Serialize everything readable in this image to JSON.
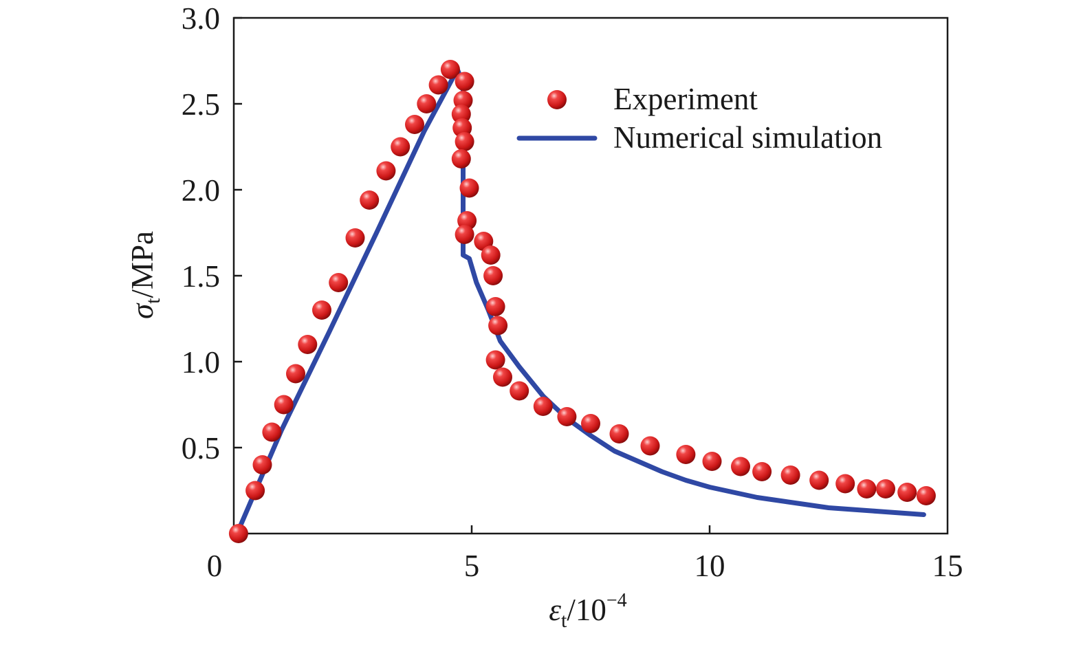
{
  "chart_data": {
    "type": "scatter",
    "title": "",
    "xlabel": {
      "symbol": "ε",
      "subscript": "t",
      "unit_prefix": "/10",
      "exponent": "−4"
    },
    "ylabel": {
      "symbol": "σ",
      "subscript": "t",
      "unit": "/MPa"
    },
    "xlim": [
      0,
      15
    ],
    "ylim": [
      0,
      3.0
    ],
    "xticks": [
      {
        "value": 0,
        "label": "0"
      },
      {
        "value": 5,
        "label": "5"
      },
      {
        "value": 10,
        "label": "10"
      },
      {
        "value": 15,
        "label": "15"
      }
    ],
    "yticks": [
      {
        "value": 0.5,
        "label": "0.5"
      },
      {
        "value": 1.0,
        "label": "1.0"
      },
      {
        "value": 1.5,
        "label": "1.5"
      },
      {
        "value": 2.0,
        "label": "2.0"
      },
      {
        "value": 2.5,
        "label": "2.5"
      },
      {
        "value": 3.0,
        "label": "3.0"
      }
    ],
    "grid": false,
    "legend_position": "top-right",
    "series": [
      {
        "name": "Experiment",
        "kind": "scatter",
        "color": "#d42020",
        "points": [
          [
            0.1,
            0.0
          ],
          [
            0.45,
            0.25
          ],
          [
            0.6,
            0.4
          ],
          [
            0.8,
            0.59
          ],
          [
            1.05,
            0.75
          ],
          [
            1.3,
            0.93
          ],
          [
            1.55,
            1.1
          ],
          [
            1.85,
            1.3
          ],
          [
            2.2,
            1.46
          ],
          [
            2.55,
            1.72
          ],
          [
            2.85,
            1.94
          ],
          [
            3.2,
            2.11
          ],
          [
            3.5,
            2.25
          ],
          [
            3.8,
            2.38
          ],
          [
            4.05,
            2.5
          ],
          [
            4.3,
            2.61
          ],
          [
            4.55,
            2.7
          ],
          [
            4.85,
            2.63
          ],
          [
            4.82,
            2.52
          ],
          [
            4.78,
            2.44
          ],
          [
            4.8,
            2.36
          ],
          [
            4.85,
            2.28
          ],
          [
            4.78,
            2.18
          ],
          [
            4.95,
            2.01
          ],
          [
            4.9,
            1.82
          ],
          [
            4.85,
            1.74
          ],
          [
            5.25,
            1.7
          ],
          [
            5.4,
            1.62
          ],
          [
            5.45,
            1.5
          ],
          [
            5.5,
            1.32
          ],
          [
            5.55,
            1.21
          ],
          [
            5.5,
            1.01
          ],
          [
            5.65,
            0.91
          ],
          [
            6.0,
            0.83
          ],
          [
            6.5,
            0.74
          ],
          [
            7.0,
            0.68
          ],
          [
            7.5,
            0.64
          ],
          [
            8.1,
            0.58
          ],
          [
            8.75,
            0.51
          ],
          [
            9.5,
            0.46
          ],
          [
            10.05,
            0.42
          ],
          [
            10.65,
            0.39
          ],
          [
            11.1,
            0.36
          ],
          [
            11.7,
            0.34
          ],
          [
            12.3,
            0.31
          ],
          [
            12.85,
            0.29
          ],
          [
            13.3,
            0.26
          ],
          [
            13.7,
            0.26
          ],
          [
            14.15,
            0.24
          ],
          [
            14.55,
            0.22
          ]
        ]
      },
      {
        "name": "Numerical simulation",
        "kind": "line",
        "color": "#2f48a4",
        "points": [
          [
            0.1,
            0.02
          ],
          [
            1.0,
            0.6
          ],
          [
            2.0,
            1.17
          ],
          [
            3.0,
            1.75
          ],
          [
            4.0,
            2.34
          ],
          [
            4.7,
            2.7
          ],
          [
            4.82,
            2.62
          ],
          [
            4.82,
            1.62
          ],
          [
            4.95,
            1.6
          ],
          [
            5.1,
            1.46
          ],
          [
            5.35,
            1.3
          ],
          [
            5.6,
            1.12
          ],
          [
            6.0,
            0.97
          ],
          [
            6.5,
            0.8
          ],
          [
            7.0,
            0.67
          ],
          [
            7.5,
            0.57
          ],
          [
            8.0,
            0.48
          ],
          [
            8.5,
            0.42
          ],
          [
            9.0,
            0.36
          ],
          [
            9.5,
            0.31
          ],
          [
            10.0,
            0.27
          ],
          [
            10.5,
            0.24
          ],
          [
            11.0,
            0.21
          ],
          [
            11.5,
            0.19
          ],
          [
            12.0,
            0.17
          ],
          [
            12.5,
            0.15
          ],
          [
            13.0,
            0.14
          ],
          [
            13.5,
            0.13
          ],
          [
            14.0,
            0.12
          ],
          [
            14.5,
            0.11
          ]
        ]
      }
    ]
  }
}
